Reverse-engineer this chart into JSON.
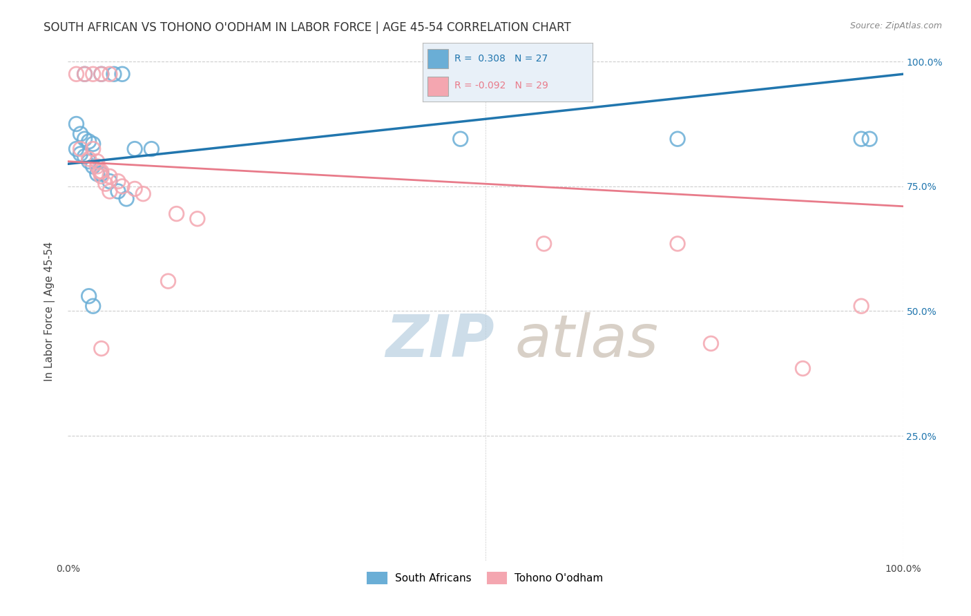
{
  "title": "SOUTH AFRICAN VS TOHONO O'ODHAM IN LABOR FORCE | AGE 45-54 CORRELATION CHART",
  "source": "Source: ZipAtlas.com",
  "ylabel": "In Labor Force | Age 45-54",
  "xlim": [
    0,
    1
  ],
  "ylim": [
    0,
    1
  ],
  "legend_blue_label": "South Africans",
  "legend_pink_label": "Tohono O'odham",
  "R_blue": 0.308,
  "N_blue": 27,
  "R_pink": -0.092,
  "N_pink": 29,
  "blue_color": "#6aaed6",
  "pink_color": "#f4a6b0",
  "blue_line_color": "#2176ae",
  "pink_line_color": "#e87b8a",
  "blue_x": [
    0.02,
    0.04,
    0.055,
    0.065,
    0.01,
    0.015,
    0.02,
    0.025,
    0.03,
    0.01,
    0.015,
    0.02,
    0.025,
    0.03,
    0.035,
    0.04,
    0.05,
    0.06,
    0.08,
    0.1,
    0.025,
    0.03,
    0.47,
    0.73,
    0.95,
    0.96,
    0.07
  ],
  "blue_y": [
    0.975,
    0.975,
    0.975,
    0.975,
    0.875,
    0.855,
    0.845,
    0.84,
    0.835,
    0.825,
    0.815,
    0.81,
    0.8,
    0.79,
    0.775,
    0.775,
    0.76,
    0.74,
    0.825,
    0.825,
    0.53,
    0.51,
    0.845,
    0.845,
    0.845,
    0.845,
    0.725
  ],
  "pink_x": [
    0.01,
    0.02,
    0.03,
    0.04,
    0.05,
    0.015,
    0.025,
    0.035,
    0.04,
    0.05,
    0.06,
    0.065,
    0.08,
    0.09,
    0.13,
    0.155,
    0.04,
    0.12,
    0.57,
    0.73,
    0.88,
    0.95,
    0.77,
    0.03,
    0.035,
    0.038,
    0.04,
    0.045,
    0.05
  ],
  "pink_y": [
    0.975,
    0.975,
    0.975,
    0.975,
    0.975,
    0.825,
    0.805,
    0.79,
    0.78,
    0.77,
    0.76,
    0.75,
    0.745,
    0.735,
    0.695,
    0.685,
    0.425,
    0.56,
    0.635,
    0.635,
    0.385,
    0.51,
    0.435,
    0.825,
    0.8,
    0.78,
    0.77,
    0.755,
    0.74
  ],
  "background_color": "#ffffff",
  "grid_color": "#cccccc",
  "title_fontsize": 12,
  "axis_label_fontsize": 11,
  "tick_fontsize": 10,
  "legend_box_color": "#e8f0f8",
  "blue_line_y0": 0.795,
  "blue_line_y1": 0.975,
  "pink_line_y0": 0.8,
  "pink_line_y1": 0.71,
  "watermark_zip_color": "#c8d8e8",
  "watermark_atlas_color": "#d0c8c0"
}
